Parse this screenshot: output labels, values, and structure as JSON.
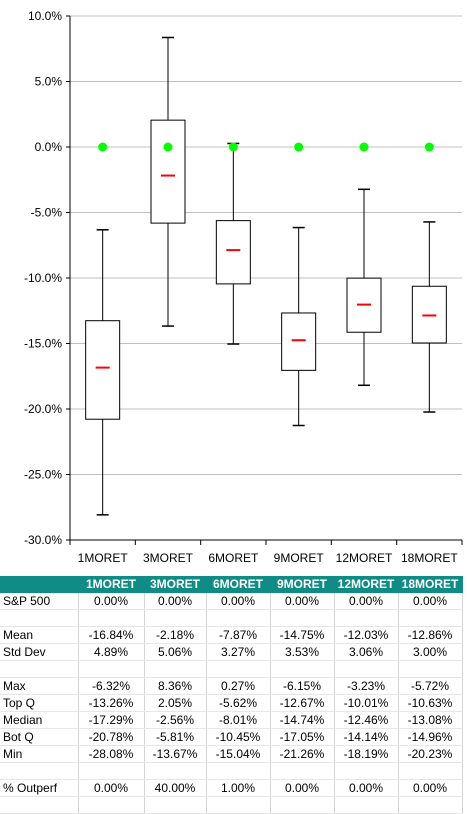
{
  "chart_data": {
    "type": "box",
    "title": "",
    "xlabel": "",
    "ylabel": "",
    "ylim": [
      -30,
      10
    ],
    "yticks": [
      10,
      5,
      0,
      -5,
      -10,
      -15,
      -20,
      -25,
      -30
    ],
    "ytick_labels": [
      "10.0%",
      "5.0%",
      "0.0%",
      "-5.0%",
      "-10.0%",
      "-15.0%",
      "-20.0%",
      "-25.0%",
      "-30.0%"
    ],
    "grid": true,
    "categories": [
      "1MORET",
      "3MORET",
      "6MORET",
      "9MORET",
      "12MORET",
      "18MORET"
    ],
    "series": [
      {
        "name": "Max",
        "values": [
          -6.32,
          8.36,
          0.27,
          -6.15,
          -3.23,
          -5.72
        ]
      },
      {
        "name": "Top Q",
        "values": [
          -13.26,
          2.05,
          -5.62,
          -12.67,
          -10.01,
          -10.63
        ]
      },
      {
        "name": "Mean",
        "values": [
          -16.84,
          -2.18,
          -7.87,
          -14.75,
          -12.03,
          -12.86
        ]
      },
      {
        "name": "Bot Q",
        "values": [
          -20.78,
          -5.81,
          -10.45,
          -17.05,
          -14.14,
          -14.96
        ]
      },
      {
        "name": "Min",
        "values": [
          -28.08,
          -13.67,
          -15.04,
          -21.26,
          -18.19,
          -20.23
        ]
      },
      {
        "name": "S&P 500",
        "values": [
          0,
          0,
          0,
          0,
          0,
          0
        ]
      }
    ],
    "colors": {
      "box": "#000000",
      "mean": "#ff0000",
      "sp500": "#00ff00",
      "grid": "#c0c0c0"
    }
  },
  "table": {
    "headers": [
      "",
      "1MORET",
      "3MORET",
      "6MORET",
      "9MORET",
      "12MORET",
      "18MORET"
    ],
    "header_color": "#0f8c86",
    "rows": [
      {
        "label": "S&P 500",
        "values": [
          "0.00%",
          "0.00%",
          "0.00%",
          "0.00%",
          "0.00%",
          "0.00%"
        ]
      },
      {
        "label": "",
        "values": [
          "",
          "",
          "",
          "",
          "",
          ""
        ]
      },
      {
        "label": "Mean",
        "values": [
          "-16.84%",
          "-2.18%",
          "-7.87%",
          "-14.75%",
          "-12.03%",
          "-12.86%"
        ]
      },
      {
        "label": "Std Dev",
        "values": [
          "4.89%",
          "5.06%",
          "3.27%",
          "3.53%",
          "3.06%",
          "3.00%"
        ]
      },
      {
        "label": "",
        "values": [
          "",
          "",
          "",
          "",
          "",
          ""
        ]
      },
      {
        "label": "Max",
        "values": [
          "-6.32%",
          "8.36%",
          "0.27%",
          "-6.15%",
          "-3.23%",
          "-5.72%"
        ]
      },
      {
        "label": "Top Q",
        "values": [
          "-13.26%",
          "2.05%",
          "-5.62%",
          "-12.67%",
          "-10.01%",
          "-10.63%"
        ]
      },
      {
        "label": "Median",
        "values": [
          "-17.29%",
          "-2.56%",
          "-8.01%",
          "-14.74%",
          "-12.46%",
          "-13.08%"
        ]
      },
      {
        "label": "Bot Q",
        "values": [
          "-20.78%",
          "-5.81%",
          "-10.45%",
          "-17.05%",
          "-14.14%",
          "-14.96%"
        ]
      },
      {
        "label": "Min",
        "values": [
          "-28.08%",
          "-13.67%",
          "-15.04%",
          "-21.26%",
          "-18.19%",
          "-20.23%"
        ]
      },
      {
        "label": "",
        "values": [
          "",
          "",
          "",
          "",
          "",
          ""
        ]
      },
      {
        "label": "% Outperf",
        "values": [
          "0.00%",
          "40.00%",
          "1.00%",
          "0.00%",
          "0.00%",
          "0.00%"
        ]
      },
      {
        "label": "",
        "values": [
          "",
          "",
          "",
          "",
          "",
          ""
        ]
      }
    ]
  }
}
